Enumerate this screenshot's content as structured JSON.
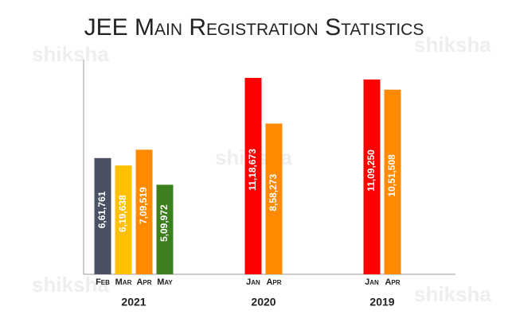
{
  "chart_data": {
    "type": "bar",
    "title": "JEE Main Registration Statistics",
    "watermark": "shiksha",
    "ylim": [
      0,
      1200000
    ],
    "groups": [
      {
        "name": "2021",
        "categories": [
          "Feb",
          "Mar",
          "Apr",
          "May"
        ],
        "values": [
          661761,
          619638,
          709519,
          509972
        ],
        "value_labels": [
          "6,61,761",
          "6,19,638",
          "7,09,519",
          "5,09,972"
        ],
        "colors": [
          "#4a5162",
          "#ffc000",
          "#ff8a00",
          "#3b7f1f"
        ]
      },
      {
        "name": "2020",
        "categories": [
          "Jan",
          "Apr"
        ],
        "values": [
          1118673,
          858273
        ],
        "value_labels": [
          "11,18,673",
          "8,58,273"
        ],
        "colors": [
          "#ff0000",
          "#ff8a00"
        ]
      },
      {
        "name": "2019",
        "categories": [
          "Jan",
          "Apr"
        ],
        "values": [
          1109250,
          1051508
        ],
        "value_labels": [
          "11,09,250",
          "10,51,508"
        ],
        "colors": [
          "#ff0000",
          "#ff8a00"
        ]
      }
    ]
  }
}
